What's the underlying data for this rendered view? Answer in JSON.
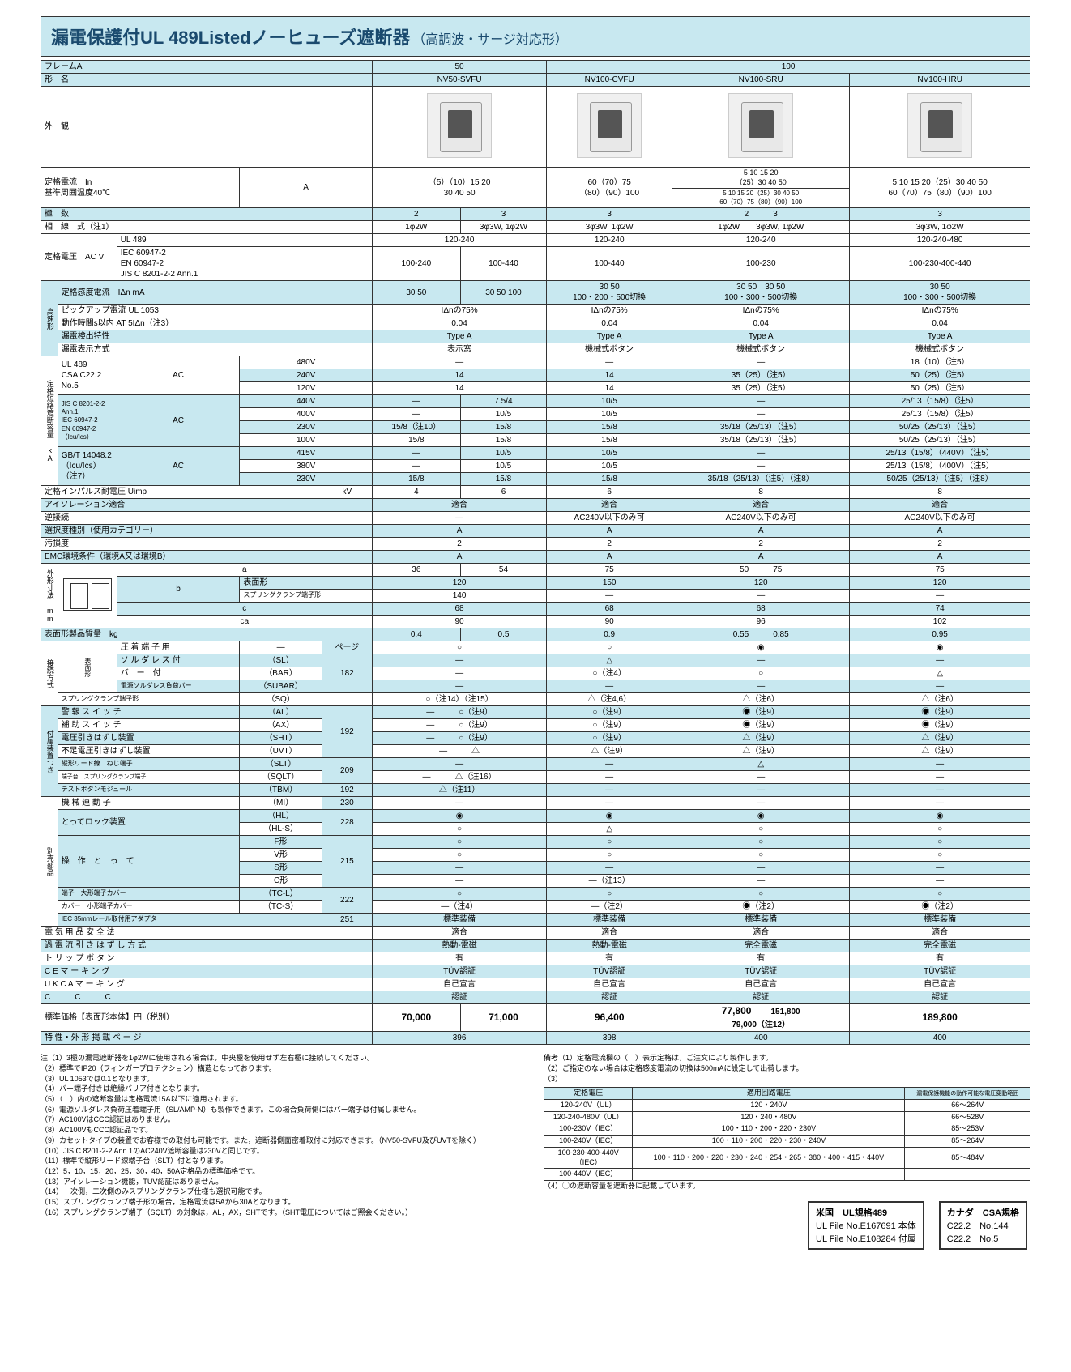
{
  "title": {
    "main": "漏電保護付UL 489Listedノーヒューズ遮断器",
    "sub": "（高調波・サージ対応形）"
  },
  "header": {
    "frameA": "フレームA",
    "frame50": "50",
    "frame100": "100",
    "modelLabel": "形　名",
    "models": [
      "NV50-SVFU",
      "NV100-CVFU",
      "NV100-SRU",
      "NV100-HRU"
    ],
    "appearance": "外　観"
  },
  "rows": {
    "ratedCurrent": {
      "label": "定格電流　In",
      "unit": "A",
      "ambient": "基準周囲温度40℃",
      "v1": "（5）（10）15 20\n30 40 50",
      "v2": "60（70）75\n（80）（90）100",
      "v3a": "5 10 15 20\n（25）30 40 50",
      "v3b": "5 10 15 20（25）30 40 50\n60（70）75（80）（90）100",
      "v4": "5 10 15 20（25）30 40 50\n60（70）75（80）（90）100"
    },
    "poles": {
      "label": "極　数",
      "v1a": "2",
      "v1b": "3",
      "v2": "3",
      "v3a": "2",
      "v3b": "3",
      "v4": "3"
    },
    "wiring": {
      "label": "相　線　式（注1）",
      "v1a": "1φ2W",
      "v1b": "3φ3W, 1φ2W",
      "v2": "3φ3W, 1φ2W",
      "v3a": "1φ2W",
      "v3b": "3φ3W, 1φ2W",
      "v4": "3φ3W, 1φ2W"
    },
    "ul489": {
      "label": "UL 489",
      "v1": "120-240",
      "v2": "120-240",
      "v3": "120-240",
      "v4": "120-240-480"
    },
    "ratedVolt": {
      "label": "定格電圧　AC V",
      "std": "IEC 60947-2\nEN 60947-2\nJIS C 8201-2-2 Ann.1",
      "v1a": "100-240",
      "v1b": "100-440",
      "v2": "100-440",
      "v3": "100-230",
      "v4": "100-230-400-440"
    },
    "sensCurrent": {
      "label": "定格感度電流　IΔn mA",
      "v1a": "30 50",
      "v1b": "30 50 100",
      "v2": "30 50\n100・200・500切換",
      "v3a": "30 50",
      "v3b": "30 50\n100・300・500切換",
      "v4": "30 50\n100・300・500切換"
    },
    "pickup": {
      "label": "ピックアップ電流 UL 1053",
      "v1": "IΔnの75%",
      "v2": "IΔnの75%",
      "v3": "IΔnの75%",
      "v4": "IΔnの75%"
    },
    "optime": {
      "label": "動作時間s以内 AT 5IΔn（注3）",
      "v1": "0.04",
      "v2": "0.04",
      "v3": "0.04",
      "v4": "0.04"
    },
    "leakchar": {
      "label": "漏電検出特性",
      "v1": "Type A",
      "v2": "Type A",
      "v3": "Type A",
      "v4": "Type A"
    },
    "leakdisp": {
      "label": "漏電表示方式",
      "v1": "表示窓",
      "v2": "機械式ボタン",
      "v3": "機械式ボタン",
      "v4": "機械式ボタン"
    },
    "breaking": {
      "grouplabel": "定格短絡遮断容量 kA",
      "ul489csa": "UL 489\nCSA C22.2 No.5",
      "ac": "AC",
      "r480": {
        "v": "480V",
        "v1": "—",
        "v2": "—",
        "v3": "—",
        "v4": "18（10）（注5）"
      },
      "r240": {
        "v": "240V",
        "v1": "14",
        "v2": "14",
        "v3": "35（25）（注5）",
        "v4": "50（25）（注5）"
      },
      "r120": {
        "v": "120V",
        "v1": "14",
        "v2": "14",
        "v3": "35（25）（注5）",
        "v4": "50（25）（注5）"
      },
      "jisiec": "JIS C 8201-2-2 Ann.1\nIEC 60947-2\nEN 60947-2\n（Icu/Ics）",
      "r440": {
        "v": "440V",
        "v1a": "—",
        "v1b": "7.5/4",
        "v2": "10/5",
        "v3": "—",
        "v4": "25/13（15/8）（注5）"
      },
      "r400": {
        "v": "400V",
        "v1a": "—",
        "v1b": "10/5",
        "v2": "10/5",
        "v3": "—",
        "v4": "25/13（15/8）（注5）"
      },
      "r230b": {
        "v": "230V",
        "v1a": "15/8（注10）",
        "v1b": "15/8",
        "v2": "15/8",
        "v3": "35/18（25/13）（注5）",
        "v4": "50/25（25/13）（注5）"
      },
      "r100": {
        "v": "100V",
        "v1": "15/8",
        "v1b": "15/8",
        "v2": "15/8",
        "v3": "35/18（25/13）（注5）",
        "v4": "50/25（25/13）（注5）"
      },
      "gbt": "GB/T 14048.2\n（Icu/Ics）\n（注7）",
      "r415": {
        "v": "415V",
        "v1a": "—",
        "v1b": "10/5",
        "v2": "10/5",
        "v3": "—",
        "v4": "25/13（15/8）（440V）（注5）"
      },
      "r380": {
        "v": "380V",
        "v1a": "—",
        "v1b": "10/5",
        "v2": "10/5",
        "v3": "—",
        "v4": "25/13（15/8）（400V）（注5）"
      },
      "r230c": {
        "v": "230V",
        "v1": "15/8",
        "v1b": "15/8",
        "v2": "15/8",
        "v3": "35/18（25/13）（注5）（注8）",
        "v4": "50/25（25/13）（注5）（注8）"
      }
    },
    "uimp": {
      "label": "定格インパルス耐電圧 Uimp",
      "unit": "kV",
      "v1a": "4",
      "v1b": "6",
      "v2": "6",
      "v3": "8",
      "v4": "8"
    },
    "isolation": {
      "label": "アイソレーション適合",
      "v1": "適合",
      "v2": "適合",
      "v3": "適合",
      "v4": "適合"
    },
    "reverse": {
      "label": "逆接続",
      "v1": "—",
      "v2": "AC240V以下のみ可",
      "v3": "AC240V以下のみ可",
      "v4": "AC240V以下のみ可"
    },
    "selcat": {
      "label": "選択度種別（使用カテゴリー）",
      "v1": "A",
      "v2": "A",
      "v3": "A",
      "v4": "A"
    },
    "pollution": {
      "label": "汚損度",
      "v1": "2",
      "v2": "2",
      "v3": "2",
      "v4": "2"
    },
    "emc": {
      "label": "EMC環境条件（環境A又は環境B）",
      "v1": "A",
      "v2": "A",
      "v3": "A",
      "v4": "A"
    },
    "dims": {
      "grouplabel": "外形寸法 mm",
      "a": {
        "label": "a",
        "v1a": "36",
        "v1b": "54",
        "v2": "75",
        "v3a": "50",
        "v3b": "75",
        "v4": "75"
      },
      "b1": {
        "label": "表面形",
        "v1": "120",
        "v2": "150",
        "v3": "120",
        "v4": "120"
      },
      "b2": {
        "label": "スプリングクランプ端子形",
        "v1": "140",
        "v2": "—",
        "v3": "—",
        "v4": "—"
      },
      "c": {
        "label": "c",
        "v1": "68",
        "v2": "68",
        "v3": "68",
        "v4": "74"
      },
      "ca": {
        "label": "ca",
        "v1": "90",
        "v2": "90",
        "v3": "96",
        "v4": "102"
      }
    },
    "mass": {
      "label": "表面形製品質量　kg",
      "v1a": "0.4",
      "v1b": "0.5",
      "v2": "0.9",
      "v3a": "0.55",
      "v3b": "0.85",
      "v4": "0.95"
    },
    "connection": {
      "grouplabel": "接続方式",
      "crimp": {
        "label": "圧 着 端 子 用",
        "code": "—",
        "page": "ページ",
        "v1": "○",
        "v2": "○",
        "v3": "◉",
        "v4": "◉"
      },
      "solderless": {
        "label": "ソ ル ダ レ ス 付",
        "code": "（SL）",
        "v1": "—",
        "v2": "△",
        "v3": "—",
        "v4": "—"
      },
      "bar": {
        "label": "バ　ー　付",
        "code": "（BAR）",
        "page": "182",
        "v1": "—",
        "v2": "○（注4）",
        "v3": "○",
        "v4": "△"
      },
      "subar": {
        "label": "電源ソルダレス負荷バー",
        "code": "（SUBAR）",
        "v1": "—",
        "v2": "—",
        "v3": "—",
        "v4": "—"
      },
      "spring": {
        "label": "スプリングクランプ端子形",
        "code": "（SQ）",
        "v1": "○（注14）（注15）",
        "v2": "△（注4,6）",
        "v3": "△（注6）",
        "v4": "△（注6）"
      }
    },
    "accessories": {
      "grouplabel": "付属装置つき",
      "al": {
        "label": "警 報 ス イ ッ チ",
        "code": "（AL）",
        "page": "192",
        "v1": "—　　　○（注9）",
        "v2": "○（注9）",
        "v3": "◉（注9）",
        "v4": "◉（注9）"
      },
      "ax": {
        "label": "補 助 ス イ ッ チ",
        "code": "（AX）",
        "v1": "—　　　○（注9）",
        "v2": "○（注9）",
        "v3": "◉（注9）",
        "v4": "◉（注9）"
      },
      "sht": {
        "label": "電圧引きはずし装置",
        "code": "（SHT）",
        "v1": "—　　　○（注9）",
        "v2": "○（注9）",
        "v3": "△（注9）",
        "v4": "△（注9）"
      },
      "uvt": {
        "label": "不足電圧引きはずし装置",
        "code": "（UVT）",
        "v1": "—　　　△",
        "v2": "△（注9）",
        "v3": "△（注9）",
        "v4": "△（注9）"
      },
      "slt": {
        "label": "縦形リード線　ねじ端子",
        "code": "（SLT）",
        "page": "209",
        "v1": "—",
        "v2": "—",
        "v3": "△",
        "v4": "—"
      },
      "sqlt": {
        "label": "端子台　スプリングクランプ端子",
        "code": "（SQLT）",
        "v1": "—　　　△（注16）",
        "v2": "—",
        "v3": "—",
        "v4": "—"
      },
      "tbm": {
        "label": "テストボタンモジュール",
        "code": "（TBM）",
        "page": "192",
        "v1": "△（注11）",
        "v2": "—",
        "v3": "—",
        "v4": "—"
      }
    },
    "optional": {
      "grouplabel": "別売部品",
      "mi": {
        "label": "機 械 連 動 子",
        "code": "（MI）",
        "page": "230",
        "v1": "—",
        "v2": "—",
        "v3": "—",
        "v4": "—"
      },
      "hl": {
        "label": "とってロック装置",
        "code": "（HL）",
        "page": "228",
        "v1": "◉",
        "v2": "◉",
        "v3": "◉",
        "v4": "◉"
      },
      "hls": {
        "code": "（HL-S）",
        "v1": "○",
        "v2": "△",
        "v3": "○",
        "v4": "○"
      },
      "handle": {
        "label": "操　作　と　っ　て",
        "page": "215"
      },
      "f": {
        "label": "F形",
        "v1": "○",
        "v2": "○",
        "v3": "○",
        "v4": "○"
      },
      "v": {
        "label": "V形",
        "v1": "○",
        "v2": "○",
        "v3": "○",
        "v4": "○"
      },
      "s": {
        "label": "S形",
        "v1": "—",
        "v2": "—",
        "v3": "—",
        "v4": "—"
      },
      "c": {
        "label": "C形",
        "v1": "—",
        "v2": "—（注13）",
        "v3": "—",
        "v4": "—"
      },
      "tcl": {
        "label": "端子　大形端子カバー",
        "code": "（TC-L）",
        "page": "222",
        "v1": "○",
        "v2": "○",
        "v3": "○",
        "v4": "○"
      },
      "tcs": {
        "label": "カバー　小形端子カバー",
        "code": "（TC-S）",
        "v1": "—（注4）",
        "v2": "—（注2）",
        "v3": "◉（注2）",
        "v4": "◉（注2）"
      },
      "iec35": {
        "label": "IEC 35mmレール取付用アダプタ",
        "page": "251",
        "v1": "標準装備",
        "v2": "標準装備",
        "v3": "標準装備",
        "v4": "標準装備"
      }
    },
    "elecsafe": {
      "label": "電 気 用 品 安 全 法",
      "v1": "適合",
      "v2": "適合",
      "v3": "適合",
      "v4": "適合"
    },
    "ovtrip": {
      "label": "過 電 流 引 き は ず し 方 式",
      "v1": "熱動-電磁",
      "v2": "熱動-電磁",
      "v3": "完全電磁",
      "v4": "完全電磁"
    },
    "tripbtn": {
      "label": "ト リ ッ プ ボ タ ン",
      "v1": "有",
      "v2": "有",
      "v3": "有",
      "v4": "有"
    },
    "ce": {
      "label": "C E マ ー キ ン グ",
      "v1": "TÜV認証",
      "v2": "TÜV認証",
      "v3": "TÜV認証",
      "v4": "TÜV認証"
    },
    "ukca": {
      "label": "U K C A マ ー キ ン グ",
      "v1": "自己宣言",
      "v2": "自己宣言",
      "v3": "自己宣言",
      "v4": "自己宣言"
    },
    "ccc": {
      "label": "C　　　C　　　C",
      "v1": "認証",
      "v2": "認証",
      "v3": "認証",
      "v4": "認証"
    },
    "price": {
      "label": "標準価格【表面形本体】円（税別）",
      "v1a": "70,000",
      "v1b": "71,000",
      "v2": "96,400",
      "v3a": "77,800",
      "v3b": "151,800\n79,000（注12）",
      "v4": "189,800"
    },
    "pageref": {
      "label": "特 性・外 形 掲 載 ペ ー ジ",
      "v1": "396",
      "v2": "398",
      "v3": "400",
      "v4": "400"
    }
  },
  "highspeedLabel": "高速形",
  "frontFormLabel": "表面形",
  "notes": {
    "left": [
      "注（1）3極の漏電遮断器を1φ2Wに使用される場合は，中央極を使用せず左右極に接続してください。",
      "（2）標準でIP20（フィンガープロテクション）構造となっております。",
      "（3）UL 1053では0.1となります。",
      "（4）バー端子付きは絶縁バリア付きとなります。",
      "（5）（　）内の遮断容量は定格電流15A以下に適用されます。",
      "（6）電源ソルダレス負荷圧着端子用（SL/AMP-N）も製作できます。この場合負荷側にはバー端子は付属しません。",
      "（7）AC100VはCCC認証はありません。",
      "（8）AC100VもCCC認証品です。",
      "（9）カセットタイプの装置でお客様での取付も可能です。また，遮断器側面密着取付に対応できます。（NV50-SVFU及びUVTを除く）",
      "（10）JIS C 8201-2-2 Ann.1のAC240V遮断容量は230Vと同じです。",
      "（11）標準で縦形リード線端子台（SLT）付となります。",
      "（12）5，10，15，20，25，30，40，50A定格品の標準価格です。",
      "（13）アイソレーション機能，TÜV認証はありません。",
      "（14）一次側，二次側のみスプリングクランプ仕様も選択可能です。",
      "（15）スプリングクランプ端子形の場合，定格電流は5Aから30Aとなります。",
      "（16）スプリングクランプ端子（SQLT）の対象は，AL，AX，SHTです。（SHT電圧についてはご照会ください。）"
    ],
    "right": [
      "備考（1）定格電流欄の（　）表示定格は，ご注文により製作します。",
      "（2）ご指定のない場合は定格感度電流の切換は500mAに設定して出荷します。",
      "（3）"
    ],
    "righttable": {
      "h1": "定格電圧",
      "h2": "適用回路電圧",
      "h3": "漏電保護機能の動作可能な電圧変動範囲",
      "rows": [
        [
          "120-240V（UL）",
          "120・240V",
          "66～264V"
        ],
        [
          "120-240-480V（UL）",
          "120・240・480V",
          "66～528V"
        ],
        [
          "100-230V（IEC）",
          "100・110・200・220・230V",
          "85～253V"
        ],
        [
          "100-240V（IEC）",
          "100・110・200・220・230・240V",
          "85～264V"
        ],
        [
          "100-230-400-440V\n（IEC）",
          "100・110・200・220・230・240・254・265・380・400・415・440V",
          "85～484V"
        ],
        [
          "100-440V（IEC）",
          "",
          ""
        ]
      ]
    },
    "note4": "（4）◯の遮断容量を遮断器に記載しています。"
  },
  "certs": {
    "us": {
      "title": "米国　UL規格489",
      "l1": "UL File No.E167691 本体",
      "l2": "UL File No.E108284 付属"
    },
    "ca": {
      "title": "カナダ　CSA規格",
      "l1": "C22.2　No.144",
      "l2": "C22.2　No.5"
    }
  }
}
